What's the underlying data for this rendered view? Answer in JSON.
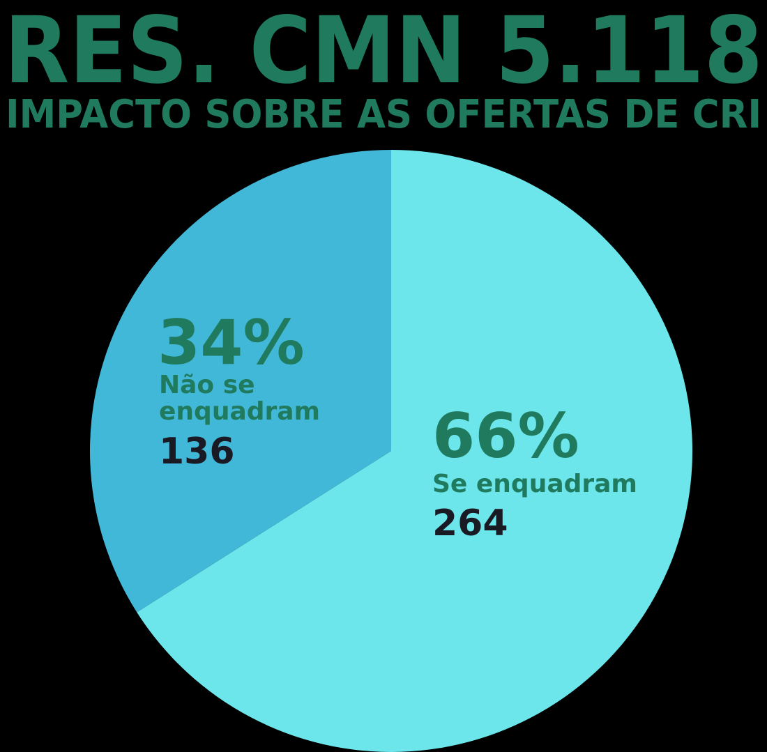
{
  "chart_data": {
    "type": "pie",
    "title": "RES. CMN 5.118",
    "subtitle": "IMPACTO SOBRE AS OFERTAS DE CRI",
    "categories": [
      "Se enquadram",
      "Não se enquadram"
    ],
    "values": [
      66,
      34
    ],
    "value_labels": [
      "66%",
      "34%"
    ],
    "counts": [
      264,
      136
    ],
    "colors": [
      "#6ce6ea",
      "#42b8d8"
    ]
  }
}
